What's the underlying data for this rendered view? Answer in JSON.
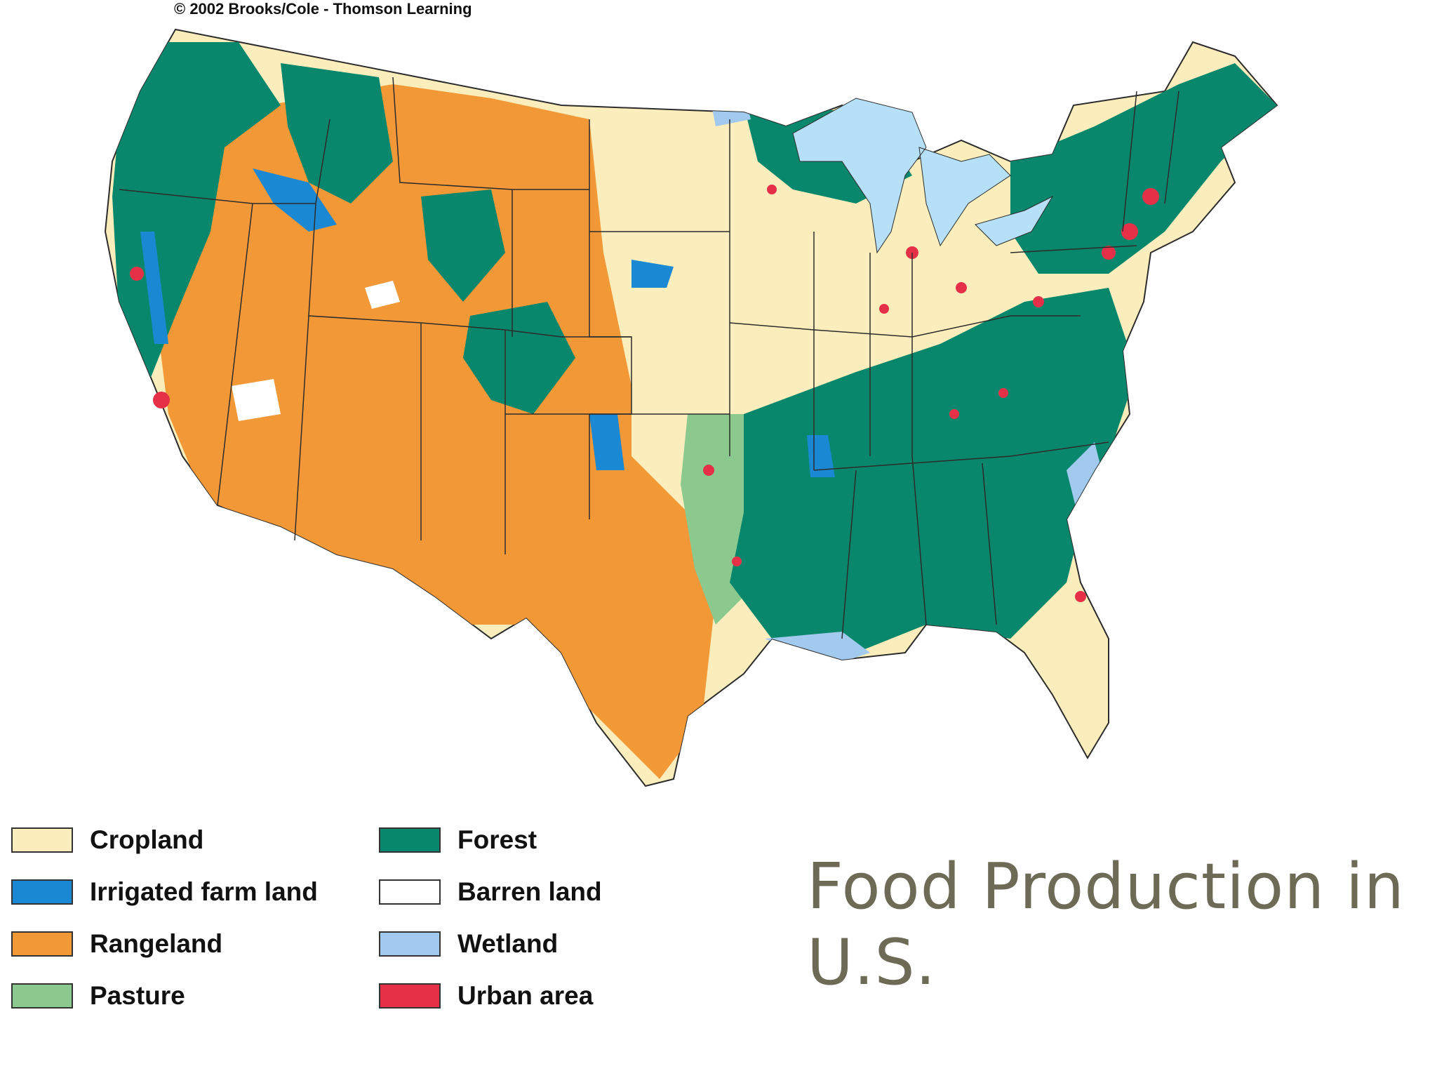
{
  "credit": "© 2002 Brooks/Cole - Thomson Learning",
  "title_line1": "Food Production in",
  "title_line2": "U.S.",
  "legend": [
    {
      "label": "Cropland",
      "color": "#fbeebc"
    },
    {
      "label": "Irrigated farm land",
      "color": "#1a88d2"
    },
    {
      "label": "Rangeland",
      "color": "#f39837"
    },
    {
      "label": "Pasture",
      "color": "#8cc98f"
    },
    {
      "label": "Forest",
      "color": "#08876c"
    },
    {
      "label": "Barren land",
      "color": "#ffffff"
    },
    {
      "label": "Wetland",
      "color": "#a2c9ee"
    },
    {
      "label": "Urban area",
      "color": "#e53048"
    }
  ],
  "colors": {
    "great_lakes": "#b6e0f7",
    "state_borders": "#2c2c2c",
    "title_text": "#6d6a56"
  }
}
